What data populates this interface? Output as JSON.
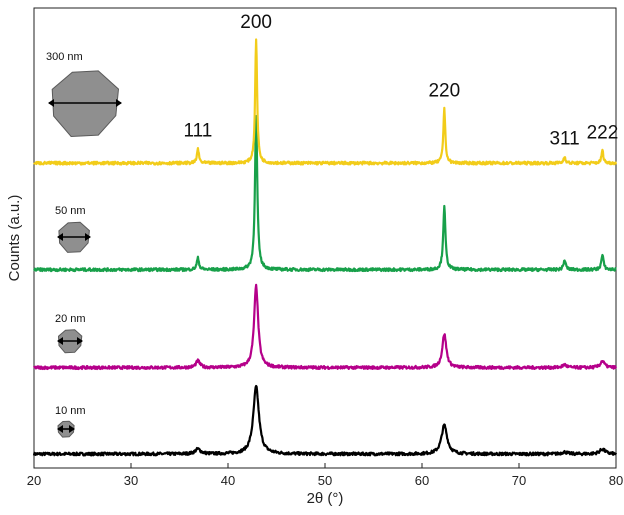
{
  "chart_data": {
    "type": "line",
    "title": "",
    "xlabel": "2θ (°)",
    "ylabel": "Counts (a.u.)",
    "xlim": [
      20,
      80
    ],
    "xticks": [
      "20",
      "30",
      "40",
      "50",
      "60",
      "70",
      "80"
    ],
    "yticks": [],
    "grid": false,
    "legend": "none",
    "peak_labels": [
      {
        "text": "111",
        "x": 36.9
      },
      {
        "text": "200",
        "x": 42.9
      },
      {
        "text": "220",
        "x": 62.3
      },
      {
        "text": "311",
        "x": 74.7
      },
      {
        "text": "222",
        "x": 78.6
      }
    ],
    "series": [
      {
        "size_label": "10 nm",
        "color": "#000000",
        "baseline": 0.0,
        "peaks": [
          {
            "x": 36.9,
            "height": 0.05,
            "width": 0.35
          },
          {
            "x": 42.9,
            "height": 0.7,
            "width": 0.35
          },
          {
            "x": 62.3,
            "height": 0.3,
            "width": 0.35
          },
          {
            "x": 74.7,
            "height": 0.02,
            "width": 0.35
          },
          {
            "x": 78.6,
            "height": 0.05,
            "width": 0.35
          }
        ]
      },
      {
        "size_label": "20 nm",
        "color": "#b5008a",
        "baseline": 0.9,
        "peaks": [
          {
            "x": 36.9,
            "height": 0.07,
            "width": 0.25
          },
          {
            "x": 42.9,
            "height": 0.85,
            "width": 0.25
          },
          {
            "x": 62.3,
            "height": 0.35,
            "width": 0.25
          },
          {
            "x": 74.7,
            "height": 0.03,
            "width": 0.25
          },
          {
            "x": 78.6,
            "height": 0.07,
            "width": 0.25
          }
        ]
      },
      {
        "size_label": "50 nm",
        "color": "#18a04a",
        "baseline": 1.92,
        "peaks": [
          {
            "x": 36.9,
            "height": 0.12,
            "width": 0.14
          },
          {
            "x": 42.9,
            "height": 1.6,
            "width": 0.14
          },
          {
            "x": 62.3,
            "height": 0.65,
            "width": 0.14
          },
          {
            "x": 74.7,
            "height": 0.1,
            "width": 0.14
          },
          {
            "x": 78.6,
            "height": 0.15,
            "width": 0.14
          }
        ]
      },
      {
        "size_label": "300 nm",
        "color": "#f2cc1a",
        "baseline": 3.03,
        "peaks": [
          {
            "x": 36.9,
            "height": 0.15,
            "width": 0.12
          },
          {
            "x": 42.9,
            "height": 1.3,
            "width": 0.12
          },
          {
            "x": 62.3,
            "height": 0.57,
            "width": 0.12
          },
          {
            "x": 74.7,
            "height": 0.07,
            "width": 0.12
          },
          {
            "x": 78.6,
            "height": 0.13,
            "width": 0.12
          }
        ]
      }
    ]
  }
}
